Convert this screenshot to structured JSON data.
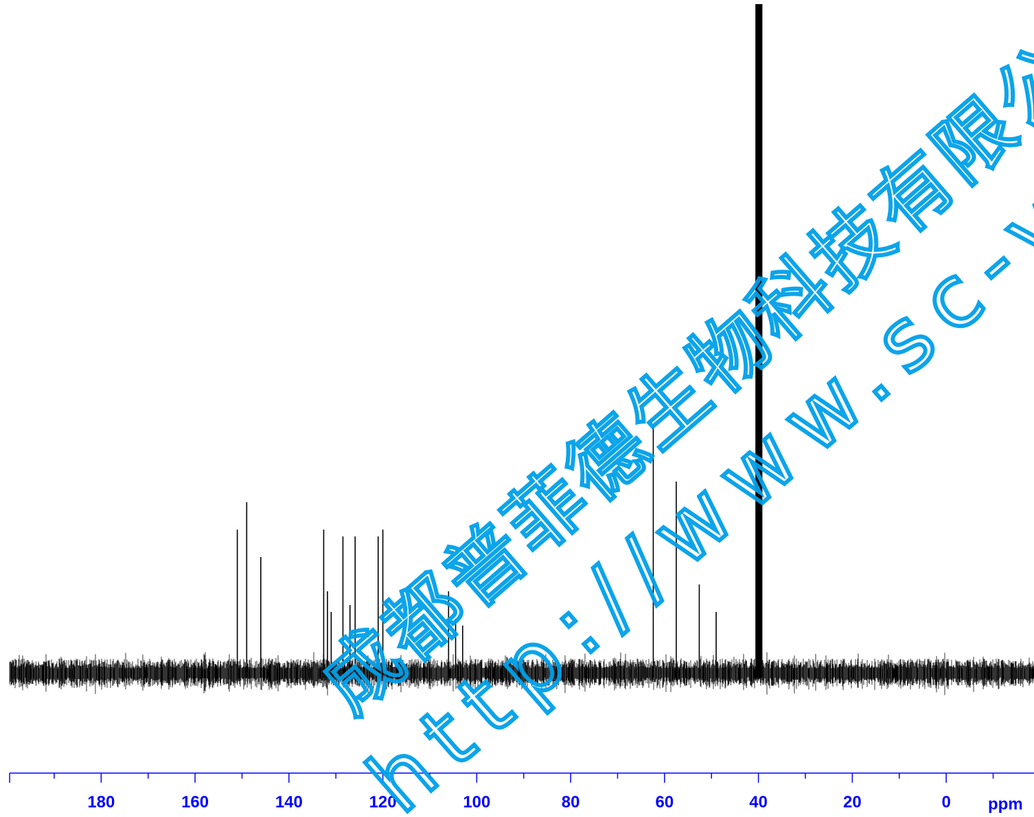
{
  "chart_data": {
    "type": "line",
    "title": "",
    "xlabel": "ppm",
    "ylabel": "",
    "xlim": [
      199.5,
      -18.7
    ],
    "x_reversed": true,
    "x_major_ticks": [
      180,
      160,
      140,
      120,
      100,
      80,
      60,
      40,
      20,
      0
    ],
    "x_tick_labels": [
      "180",
      "160",
      "140",
      "120",
      "100",
      "80",
      "60",
      "40",
      "20",
      "0"
    ],
    "x_minor_step": 10,
    "grid": false,
    "legend": "none",
    "baseline_noise": true,
    "peaks": [
      {
        "ppm": 151.0,
        "intensity": 0.21
      },
      {
        "ppm": 149.0,
        "intensity": 0.25
      },
      {
        "ppm": 146.0,
        "intensity": 0.17
      },
      {
        "ppm": 132.6,
        "intensity": 0.21
      },
      {
        "ppm": 131.8,
        "intensity": 0.12
      },
      {
        "ppm": 131.0,
        "intensity": 0.09
      },
      {
        "ppm": 128.5,
        "intensity": 0.2
      },
      {
        "ppm": 127.0,
        "intensity": 0.1
      },
      {
        "ppm": 125.9,
        "intensity": 0.2
      },
      {
        "ppm": 121.0,
        "intensity": 0.2
      },
      {
        "ppm": 120.0,
        "intensity": 0.21
      },
      {
        "ppm": 106.0,
        "intensity": 0.12
      },
      {
        "ppm": 104.5,
        "intensity": 0.08
      },
      {
        "ppm": 103.0,
        "intensity": 0.07
      },
      {
        "ppm": 62.4,
        "intensity": 0.36
      },
      {
        "ppm": 57.5,
        "intensity": 0.28
      },
      {
        "ppm": 52.6,
        "intensity": 0.13
      },
      {
        "ppm": 49.0,
        "intensity": 0.09
      },
      {
        "ppm": 40.5,
        "intensity": 1.5
      },
      {
        "ppm": 40.3,
        "intensity": 1.5
      },
      {
        "ppm": 40.1,
        "intensity": 1.5
      },
      {
        "ppm": 39.9,
        "intensity": 1.5
      },
      {
        "ppm": 39.7,
        "intensity": 1.5
      },
      {
        "ppm": 39.5,
        "intensity": 1.5
      },
      {
        "ppm": 39.3,
        "intensity": 1.5
      }
    ]
  },
  "colors": {
    "spectrum": "#000000",
    "axis": "#0000ff",
    "watermark": "#00a0e9"
  },
  "watermark": {
    "line1": "成都普菲德生物科技有限公",
    "line2": "http://www.sc-victory"
  }
}
